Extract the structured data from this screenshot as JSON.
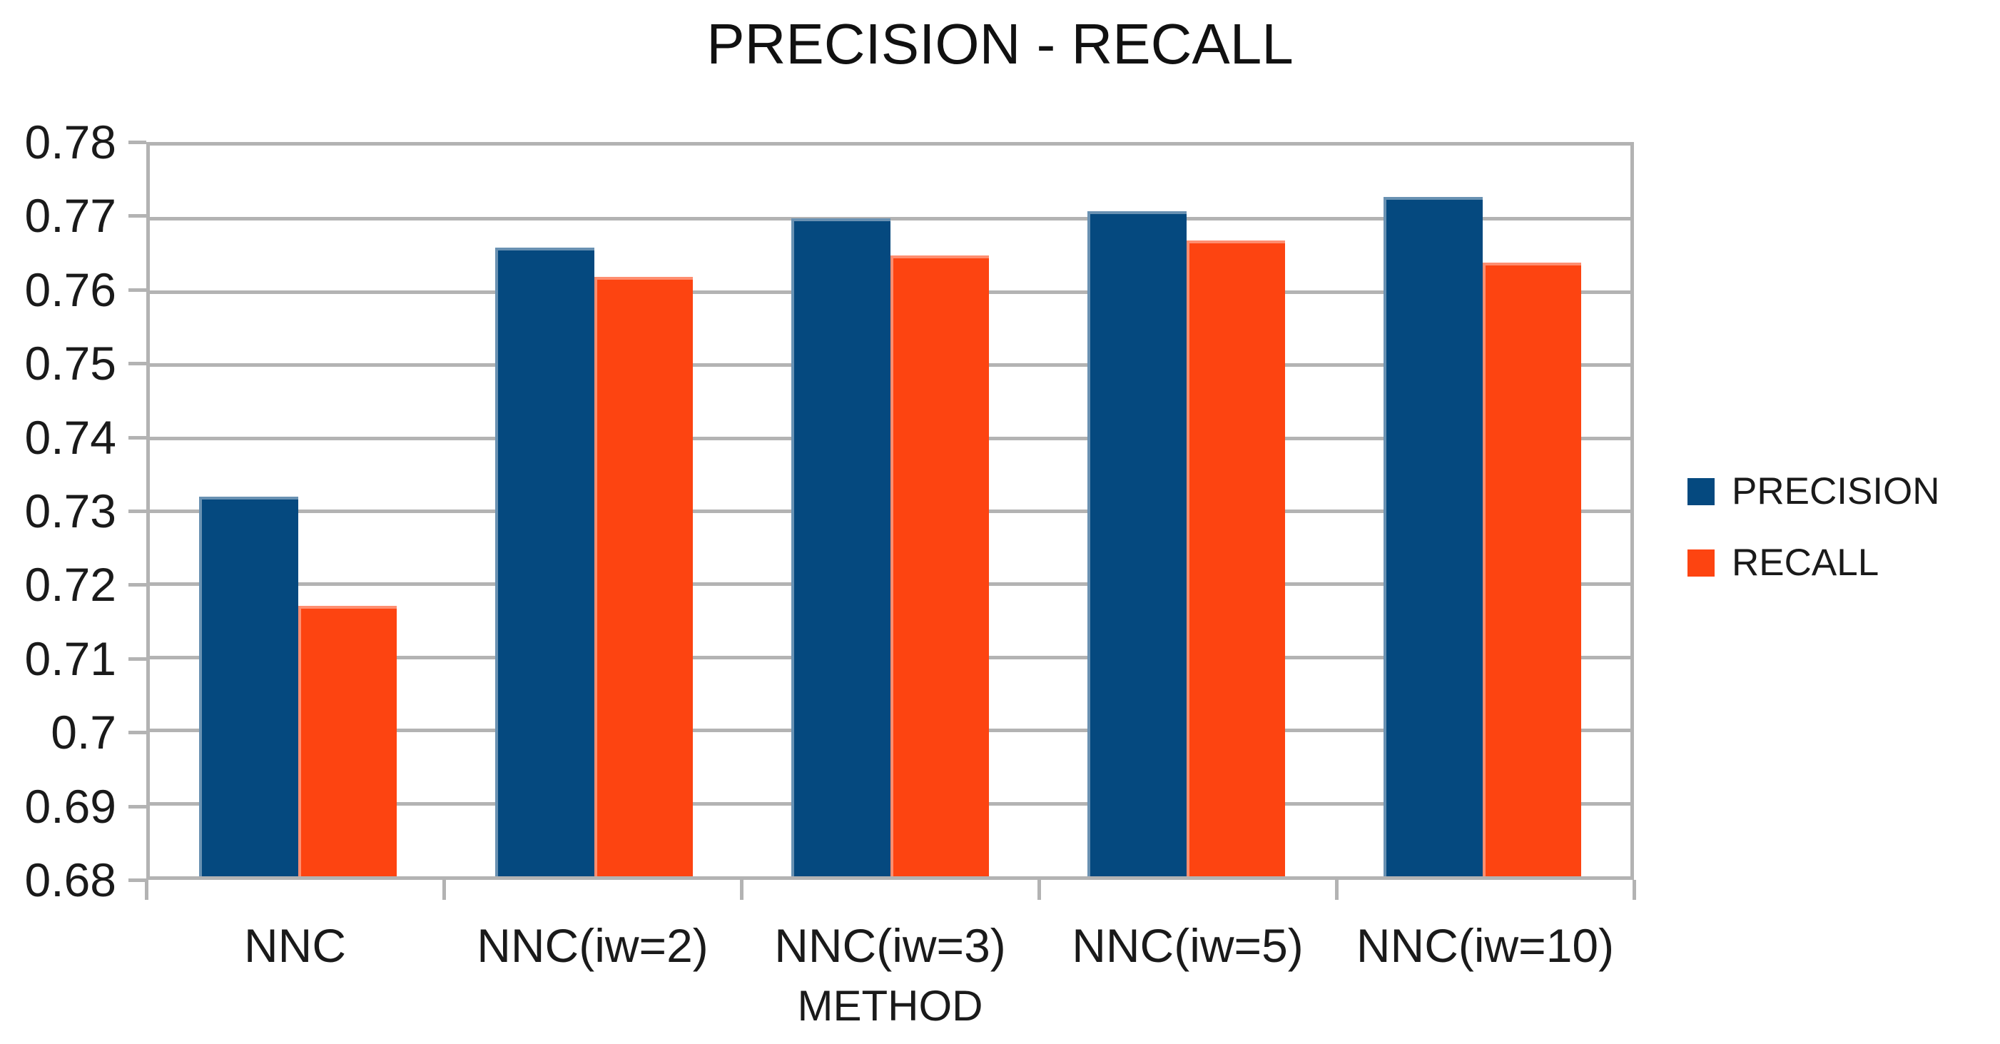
{
  "title": "PRECISION - RECALL",
  "chart_data": {
    "type": "bar",
    "title": "PRECISION - RECALL",
    "categories": [
      "NNC",
      "NNC(iw=2)",
      "NNC(iw=3)",
      "NNC(iw=5)",
      "NNC(iw=10)"
    ],
    "series": [
      {
        "name": "PRECISION",
        "color": "#05497f",
        "values": [
          0.732,
          0.766,
          0.77,
          0.771,
          0.773
        ]
      },
      {
        "name": "RECALL",
        "color": "#fd4411",
        "values": [
          0.717,
          0.762,
          0.765,
          0.767,
          0.764
        ]
      }
    ],
    "xlabel": "METHOD",
    "ylabel": "",
    "ylim": [
      0.68,
      0.78
    ],
    "ytick_step": 0.01,
    "ytick_labels_top_to_bottom": [
      "0.78",
      "0.77",
      "0.76",
      "0.75",
      "0.74",
      "0.73",
      "0.72",
      "0.71",
      "0.7",
      "0.69",
      "0.68"
    ],
    "grid": true,
    "legend_position": "right"
  },
  "colors": {
    "grid": "#b3b3b3",
    "text": "#1a1a1a",
    "background": "#ffffff"
  }
}
